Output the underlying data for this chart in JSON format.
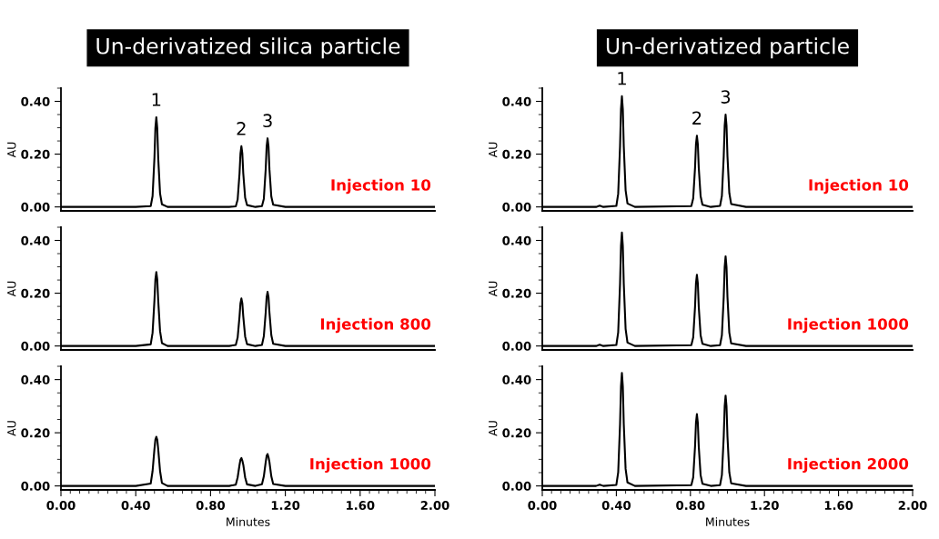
{
  "chart_data": [
    {
      "type": "line",
      "title": "Un-derivatized silica particle",
      "ylabel": "AU",
      "tick_labels": "y",
      "xlim": [
        0,
        2
      ],
      "ylim": [
        -0.015,
        0.45
      ],
      "yticks": [
        {
          "value": 0,
          "label": "0.00"
        },
        {
          "value": 0.2,
          "label": "0.20"
        },
        {
          "value": 0.4,
          "label": "0.40"
        }
      ],
      "x": [
        0,
        0.4,
        0.48,
        0.49,
        0.5,
        0.505,
        0.51,
        0.515,
        0.52,
        0.53,
        0.54,
        0.57,
        0.9,
        0.935,
        0.945,
        0.955,
        0.96,
        0.965,
        0.97,
        0.975,
        0.985,
        0.995,
        1.04,
        1.075,
        1.085,
        1.095,
        1.1,
        1.105,
        1.11,
        1.115,
        1.125,
        1.135,
        1.2,
        2.0
      ],
      "series": [
        {
          "color": "#000000",
          "values": [
            0,
            0,
            0.003,
            0.041,
            0.187,
            0.299,
            0.34,
            0.299,
            0.187,
            0.051,
            0.01,
            0,
            0,
            0.002,
            0.028,
            0.127,
            0.202,
            0.23,
            0.202,
            0.127,
            0.035,
            0.007,
            0,
            0.003,
            0.031,
            0.143,
            0.229,
            0.26,
            0.229,
            0.143,
            0.039,
            0.008,
            0,
            0
          ]
        }
      ],
      "annotations": [
        {
          "text": "1",
          "x": 0.51,
          "y": 0.34
        },
        {
          "text": "2",
          "x": 0.965,
          "y": 0.23
        },
        {
          "text": "3",
          "x": 1.105,
          "y": 0.26
        },
        "Injection 10"
      ]
    },
    {
      "type": "line",
      "title": "Un-derivatized particle",
      "ylabel": "AU",
      "tick_labels": "y",
      "xlim": [
        0,
        2
      ],
      "ylim": [
        -0.015,
        0.45
      ],
      "yticks": [
        {
          "value": 0,
          "label": "0.00"
        },
        {
          "value": 0.2,
          "label": "0.20"
        },
        {
          "value": 0.4,
          "label": "0.40"
        }
      ],
      "x": [
        0,
        0.29,
        0.31,
        0.33,
        0.4,
        0.41,
        0.42,
        0.425,
        0.43,
        0.435,
        0.44,
        0.45,
        0.46,
        0.5,
        0.805,
        0.815,
        0.825,
        0.83,
        0.835,
        0.84,
        0.845,
        0.855,
        0.865,
        0.91,
        0.96,
        0.97,
        0.98,
        0.985,
        0.99,
        0.995,
        1.0,
        1.01,
        1.02,
        1.1,
        2.0
      ],
      "series": [
        {
          "color": "#000000",
          "values": [
            0,
            0,
            0.005,
            0,
            0.004,
            0.05,
            0.231,
            0.37,
            0.42,
            0.37,
            0.231,
            0.063,
            0.013,
            0,
            0.003,
            0.032,
            0.149,
            0.238,
            0.27,
            0.238,
            0.149,
            0.041,
            0.008,
            0,
            0.004,
            0.042,
            0.193,
            0.308,
            0.35,
            0.308,
            0.193,
            0.053,
            0.011,
            0,
            0
          ]
        }
      ],
      "annotations": [
        {
          "text": "1",
          "x": 0.43,
          "y": 0.42
        },
        {
          "text": "2",
          "x": 0.835,
          "y": 0.27
        },
        {
          "text": "3",
          "x": 0.99,
          "y": 0.35
        },
        "Injection 10"
      ]
    },
    {
      "type": "line",
      "ylabel": "AU",
      "tick_labels": "y",
      "xlim": [
        0,
        2
      ],
      "ylim": [
        -0.015,
        0.45
      ],
      "yticks": [
        {
          "value": 0,
          "label": "0.00"
        },
        {
          "value": 0.2,
          "label": "0.20"
        },
        {
          "value": 0.4,
          "label": "0.40"
        }
      ],
      "x": [
        0,
        0.4,
        0.48,
        0.49,
        0.5,
        0.505,
        0.51,
        0.515,
        0.52,
        0.53,
        0.54,
        0.57,
        0.9,
        0.935,
        0.945,
        0.955,
        0.96,
        0.965,
        0.97,
        0.975,
        0.985,
        0.995,
        1.04,
        1.075,
        1.085,
        1.095,
        1.1,
        1.105,
        1.11,
        1.115,
        1.125,
        1.135,
        1.2,
        2.0
      ],
      "series": [
        {
          "color": "#000000",
          "values": [
            0,
            0,
            0.006,
            0.05,
            0.174,
            0.252,
            0.28,
            0.252,
            0.174,
            0.056,
            0.011,
            0,
            0,
            0.004,
            0.032,
            0.112,
            0.162,
            0.18,
            0.162,
            0.112,
            0.036,
            0.007,
            0,
            0.004,
            0.037,
            0.127,
            0.185,
            0.205,
            0.185,
            0.127,
            0.041,
            0.008,
            0,
            0
          ]
        }
      ],
      "annotations": [
        "Injection 800"
      ]
    },
    {
      "type": "line",
      "ylabel": "AU",
      "tick_labels": "y",
      "xlim": [
        0,
        2
      ],
      "ylim": [
        -0.015,
        0.45
      ],
      "yticks": [
        {
          "value": 0,
          "label": "0.00"
        },
        {
          "value": 0.2,
          "label": "0.20"
        },
        {
          "value": 0.4,
          "label": "0.40"
        }
      ],
      "x": [
        0,
        0.29,
        0.31,
        0.33,
        0.4,
        0.41,
        0.42,
        0.425,
        0.43,
        0.435,
        0.44,
        0.45,
        0.46,
        0.5,
        0.805,
        0.815,
        0.825,
        0.83,
        0.835,
        0.84,
        0.845,
        0.855,
        0.865,
        0.91,
        0.96,
        0.97,
        0.98,
        0.985,
        0.99,
        0.995,
        1.0,
        1.01,
        1.02,
        1.1,
        2.0
      ],
      "series": [
        {
          "color": "#000000",
          "values": [
            0,
            0,
            0.005,
            0,
            0.004,
            0.052,
            0.237,
            0.378,
            0.43,
            0.378,
            0.237,
            0.065,
            0.013,
            0,
            0.003,
            0.032,
            0.149,
            0.238,
            0.27,
            0.238,
            0.149,
            0.041,
            0.008,
            0,
            0.003,
            0.041,
            0.187,
            0.299,
            0.34,
            0.299,
            0.187,
            0.051,
            0.01,
            0,
            0
          ]
        }
      ],
      "annotations": [
        "Injection 1000"
      ]
    },
    {
      "type": "line",
      "xlabel": "Minutes",
      "ylabel": "AU",
      "xlim": [
        0,
        2
      ],
      "ylim": [
        -0.015,
        0.45
      ],
      "xticks": [
        {
          "value": 0,
          "label": "0.00"
        },
        {
          "value": 0.4,
          "label": "0.40"
        },
        {
          "value": 0.8,
          "label": "0.80"
        },
        {
          "value": 1.2,
          "label": "1.20"
        },
        {
          "value": 1.6,
          "label": "1.60"
        },
        {
          "value": 2,
          "label": "2.00"
        }
      ],
      "yticks": [
        {
          "value": 0,
          "label": "0.00"
        },
        {
          "value": 0.2,
          "label": "0.20"
        },
        {
          "value": 0.4,
          "label": "0.40"
        }
      ],
      "x": [
        0,
        0.4,
        0.48,
        0.49,
        0.5,
        0.505,
        0.51,
        0.515,
        0.52,
        0.53,
        0.54,
        0.57,
        0.9,
        0.935,
        0.945,
        0.955,
        0.96,
        0.965,
        0.97,
        0.975,
        0.985,
        0.995,
        1.04,
        1.075,
        1.085,
        1.095,
        1.1,
        1.105,
        1.11,
        1.115,
        1.125,
        1.135,
        1.2,
        2.0
      ],
      "series": [
        {
          "color": "#000000",
          "values": [
            0,
            0,
            0.009,
            0.056,
            0.139,
            0.174,
            0.185,
            0.174,
            0.139,
            0.056,
            0.011,
            0,
            0,
            0.005,
            0.032,
            0.079,
            0.099,
            0.105,
            0.095,
            0.08,
            0.032,
            0.006,
            0,
            0.006,
            0.036,
            0.09,
            0.113,
            0.12,
            0.108,
            0.09,
            0.036,
            0.007,
            0,
            0
          ]
        }
      ],
      "annotations": [
        "Injection 1000"
      ]
    },
    {
      "type": "line",
      "xlabel": "Minutes",
      "ylabel": "AU",
      "xlim": [
        0,
        2
      ],
      "ylim": [
        -0.015,
        0.45
      ],
      "xticks": [
        {
          "value": 0,
          "label": "0.00"
        },
        {
          "value": 0.4,
          "label": "0.40"
        },
        {
          "value": 0.8,
          "label": "0.80"
        },
        {
          "value": 1.2,
          "label": "1.20"
        },
        {
          "value": 1.6,
          "label": "1.60"
        },
        {
          "value": 2,
          "label": "2.00"
        }
      ],
      "yticks": [
        {
          "value": 0,
          "label": "0.00"
        },
        {
          "value": 0.2,
          "label": "0.20"
        },
        {
          "value": 0.4,
          "label": "0.40"
        }
      ],
      "x": [
        0,
        0.29,
        0.31,
        0.33,
        0.4,
        0.41,
        0.42,
        0.425,
        0.43,
        0.435,
        0.44,
        0.45,
        0.46,
        0.5,
        0.805,
        0.815,
        0.825,
        0.83,
        0.835,
        0.84,
        0.845,
        0.855,
        0.865,
        0.91,
        0.96,
        0.97,
        0.98,
        0.985,
        0.99,
        0.995,
        1.0,
        1.01,
        1.02,
        1.1,
        2.0
      ],
      "series": [
        {
          "color": "#000000",
          "values": [
            0,
            0,
            0.005,
            0,
            0.004,
            0.051,
            0.234,
            0.374,
            0.425,
            0.374,
            0.234,
            0.064,
            0.013,
            0,
            0.003,
            0.032,
            0.149,
            0.238,
            0.27,
            0.238,
            0.149,
            0.041,
            0.008,
            0,
            0.003,
            0.041,
            0.187,
            0.299,
            0.34,
            0.299,
            0.187,
            0.051,
            0.01,
            0,
            0
          ]
        }
      ],
      "annotations": [
        "Injection 2000"
      ]
    }
  ]
}
